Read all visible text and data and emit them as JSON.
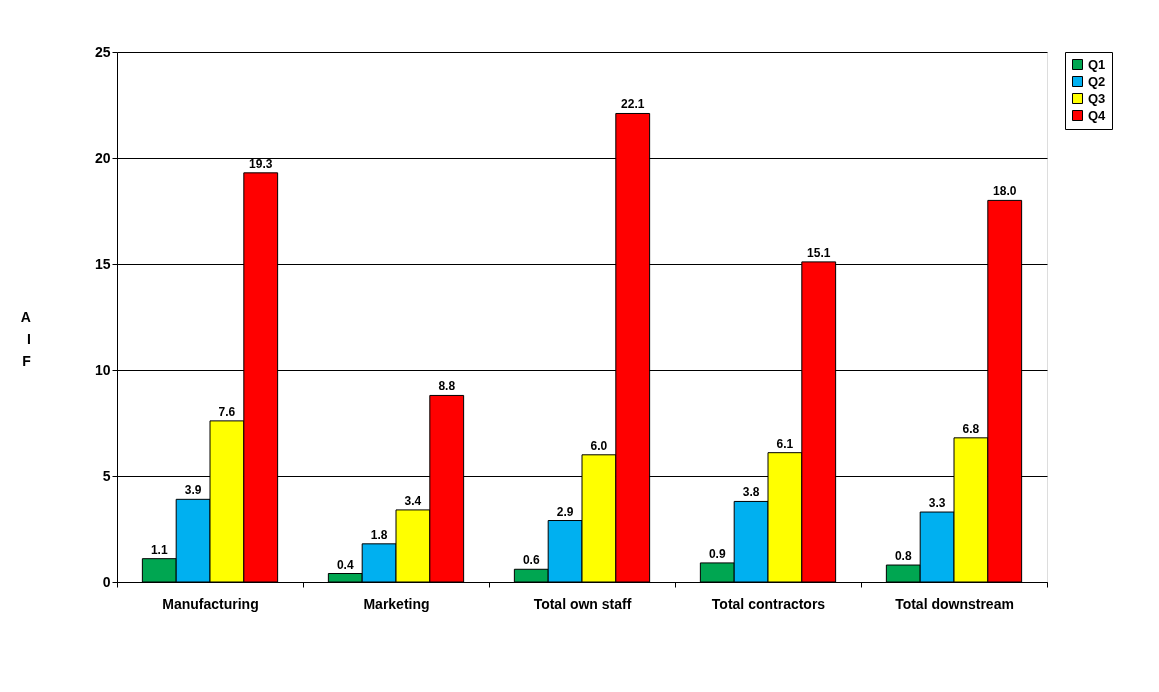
{
  "chart_data": {
    "type": "bar",
    "ylabel": "AIF",
    "categories": [
      "Manufacturing",
      "Marketing",
      "Total own staff",
      "Total contractors",
      "Total downstream"
    ],
    "series": [
      {
        "name": "Q1",
        "color": "#00a651",
        "values": [
          1.1,
          0.4,
          0.6,
          0.9,
          0.8
        ],
        "value_labels": [
          "1.1",
          "0.4",
          "0.6",
          "0.9",
          "0.8"
        ]
      },
      {
        "name": "Q2",
        "color": "#00b0f0",
        "values": [
          3.9,
          1.8,
          2.9,
          3.8,
          3.3
        ],
        "value_labels": [
          "3.9",
          "1.8",
          "2.9",
          "3.8",
          "3.3"
        ]
      },
      {
        "name": "Q3",
        "color": "#ffff00",
        "values": [
          7.6,
          3.4,
          6.0,
          6.1,
          6.8
        ],
        "value_labels": [
          "7.6",
          "3.4",
          "6.0",
          "6.1",
          "6.8"
        ]
      },
      {
        "name": "Q4",
        "color": "#ff0000",
        "values": [
          19.3,
          8.8,
          22.1,
          15.1,
          18.0
        ],
        "value_labels": [
          "19.3",
          "8.8",
          "22.1",
          "15.1",
          "18.0"
        ]
      }
    ],
    "ylim": [
      0,
      25
    ],
    "yticks": [
      0,
      5,
      10,
      15,
      20,
      25
    ],
    "grid": "y",
    "legend": "right"
  }
}
